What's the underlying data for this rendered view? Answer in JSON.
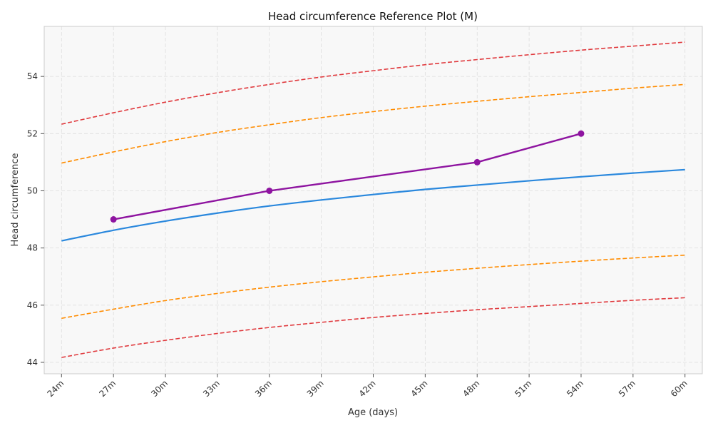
{
  "chart_data": {
    "type": "line",
    "title": "Head circumference Reference Plot (M)",
    "xlabel": "Age (days)",
    "ylabel": "Head circumference",
    "grid": true,
    "background": "#f8f8f8",
    "xlim": [
      23,
      61
    ],
    "ylim": [
      43.6,
      55.75
    ],
    "x_ticks": [
      24,
      27,
      30,
      33,
      36,
      39,
      42,
      45,
      48,
      51,
      54,
      57,
      60
    ],
    "x_tick_labels": [
      "24m",
      "27m",
      "30m",
      "33m",
      "36m",
      "39m",
      "42m",
      "45m",
      "48m",
      "51m",
      "54m",
      "57m",
      "60m"
    ],
    "y_ticks": [
      44,
      46,
      48,
      50,
      52,
      54
    ],
    "y_tick_labels": [
      "44",
      "46",
      "48",
      "50",
      "52",
      "54"
    ],
    "x": [
      24,
      27,
      30,
      33,
      36,
      39,
      42,
      45,
      48,
      51,
      54,
      57,
      60
    ],
    "series": [
      {
        "color": "#e03a3e",
        "style": "dashed",
        "values": [
          52.33,
          52.73,
          53.1,
          53.43,
          53.72,
          53.98,
          54.2,
          54.41,
          54.59,
          54.76,
          54.92,
          55.06,
          55.2
        ]
      },
      {
        "color": "#ff8c00",
        "style": "dashed",
        "values": [
          50.97,
          51.36,
          51.72,
          52.04,
          52.31,
          52.56,
          52.77,
          52.96,
          53.13,
          53.29,
          53.44,
          53.59,
          53.72
        ]
      },
      {
        "color": "#2a88dd",
        "style": "solid",
        "values": [
          48.25,
          48.62,
          48.94,
          49.22,
          49.47,
          49.68,
          49.87,
          50.05,
          50.2,
          50.35,
          50.49,
          50.62,
          50.74
        ]
      },
      {
        "color": "#ff8c00",
        "style": "dashed",
        "values": [
          45.54,
          45.86,
          46.16,
          46.41,
          46.63,
          46.82,
          46.99,
          47.15,
          47.29,
          47.42,
          47.54,
          47.65,
          47.75
        ]
      },
      {
        "color": "#e03a3e",
        "style": "dashed",
        "values": [
          44.17,
          44.5,
          44.77,
          45.01,
          45.22,
          45.4,
          45.57,
          45.71,
          45.84,
          45.95,
          46.06,
          46.17,
          46.26
        ]
      }
    ],
    "measurements": {
      "color": "#8e14a0",
      "x": [
        27,
        36,
        48,
        54
      ],
      "values": [
        49,
        50,
        51,
        52
      ]
    }
  }
}
